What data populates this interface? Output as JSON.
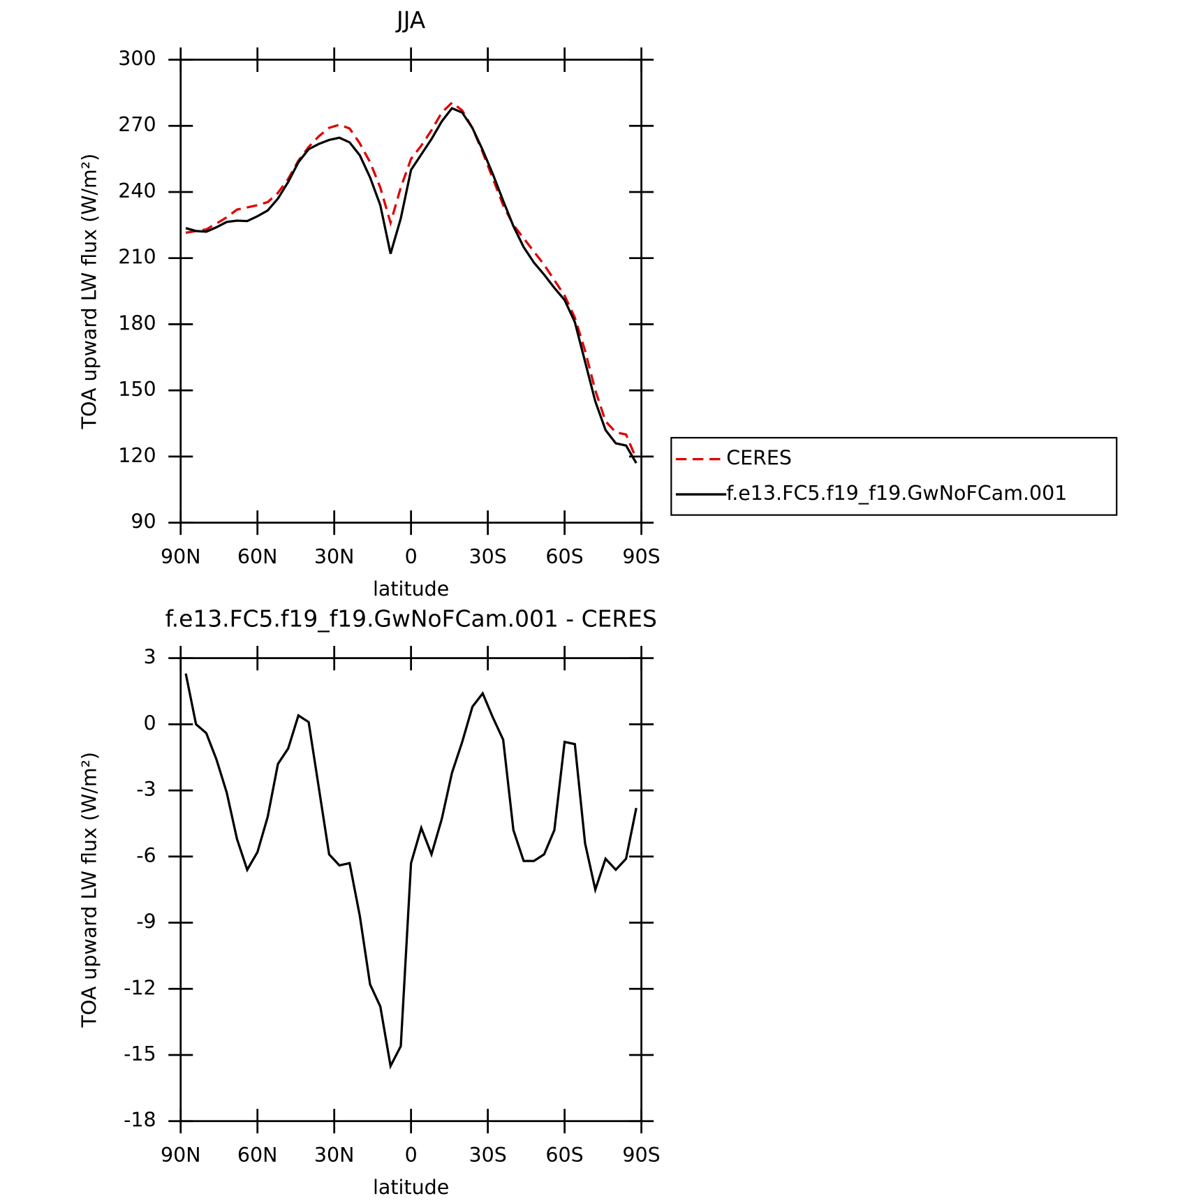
{
  "chart_data": [
    {
      "type": "line",
      "title": "JJA",
      "xlabel": "latitude",
      "ylabel": "TOA upward LW flux (W/m²)",
      "x": [
        88,
        84,
        80,
        76,
        72,
        68,
        64,
        60,
        56,
        52,
        48,
        44,
        40,
        36,
        32,
        28,
        24,
        20,
        16,
        12,
        8,
        4,
        0,
        -4,
        -8,
        -12,
        -16,
        -20,
        -24,
        -28,
        -32,
        -36,
        -40,
        -44,
        -48,
        -52,
        -56,
        -60,
        -64,
        -68,
        -72,
        -76,
        -80,
        -84,
        -88
      ],
      "series": [
        {
          "name": "CERES",
          "color": "#e00000",
          "dash": true,
          "values": [
            221.5,
            222.3,
            223,
            225.7,
            228.5,
            232,
            233,
            234,
            235.4,
            239.6,
            245.9,
            254.2,
            260.4,
            265.3,
            269.1,
            270.5,
            268.8,
            262,
            253.5,
            242,
            226,
            242,
            255,
            261,
            268,
            276,
            280.5,
            277,
            269,
            258,
            246,
            234,
            225,
            219,
            213,
            207,
            200,
            193,
            183,
            168,
            150,
            136,
            131,
            130,
            119
          ]
        },
        {
          "name": "f.e13.FC5.f19_f19.GwNoFCam.001",
          "color": "#000000",
          "dash": false,
          "values": [
            223.6,
            222.3,
            222,
            224,
            226.4,
            227,
            226.8,
            229,
            231.6,
            237,
            244.5,
            253.5,
            259.4,
            261.8,
            263.6,
            264.6,
            262.5,
            256.6,
            246.6,
            234,
            212,
            228,
            250,
            257,
            264,
            272,
            278,
            276,
            269,
            259,
            248,
            236,
            224.5,
            215,
            208,
            202.5,
            196.5,
            191,
            181,
            163,
            145,
            132,
            126,
            125,
            117
          ]
        }
      ],
      "xlim": [
        90,
        -90
      ],
      "xticks": [
        {
          "value": 90,
          "label": "90N"
        },
        {
          "value": 60,
          "label": "60N"
        },
        {
          "value": 30,
          "label": "30N"
        },
        0,
        {
          "value": -30,
          "label": "30S"
        },
        {
          "value": -60,
          "label": "60S"
        },
        {
          "value": -90,
          "label": "90S"
        }
      ],
      "ylim": [
        90,
        300
      ],
      "yticks": [
        90,
        120,
        150,
        180,
        210,
        240,
        270,
        300
      ],
      "legend": "right"
    },
    {
      "type": "line",
      "title": "f.e13.FC5.f19_f19.GwNoFCam.001 - CERES",
      "xlabel": "latitude",
      "ylabel": "TOA upward LW flux (W/m²)",
      "x": [
        88,
        84,
        80,
        76,
        72,
        68,
        64,
        60,
        56,
        52,
        48,
        44,
        40,
        36,
        32,
        28,
        24,
        20,
        16,
        12,
        8,
        4,
        0,
        -4,
        -8,
        -12,
        -16,
        -20,
        -24,
        -28,
        -32,
        -36,
        -40,
        -44,
        -48,
        -52,
        -56,
        -60,
        -64,
        -68,
        -72,
        -76,
        -80,
        -84,
        -88
      ],
      "color": "#000000",
      "values": [
        2.3,
        0,
        -0.4,
        -1.6,
        -3.1,
        -5.2,
        -6.6,
        -5.8,
        -4.2,
        -1.8,
        -1.1,
        0.4,
        0.1,
        -2.9,
        -5.9,
        -6.4,
        -6.3,
        -8.7,
        -11.8,
        -12.8,
        -15.5,
        -14.6,
        -6.3,
        -4.7,
        -5.9,
        -4.3,
        -2.2,
        -0.8,
        0.8,
        1.4,
        0.3,
        -0.7,
        -4.8,
        -6.2,
        -6.2,
        -5.9,
        -4.8,
        -0.8,
        -0.9,
        -5.4,
        -7.5,
        -6.1,
        -6.6,
        -6.1,
        -3.8
      ],
      "xlim": [
        90,
        -90
      ],
      "xticks": [
        {
          "value": 90,
          "label": "90N"
        },
        {
          "value": 60,
          "label": "60N"
        },
        {
          "value": 30,
          "label": "30N"
        },
        0,
        {
          "value": -30,
          "label": "30S"
        },
        {
          "value": -60,
          "label": "60S"
        },
        {
          "value": -90,
          "label": "90S"
        }
      ],
      "ylim": [
        -18,
        3
      ],
      "yticks": [
        -18,
        -15,
        -12,
        -9,
        -6,
        -3,
        0,
        3
      ]
    }
  ]
}
